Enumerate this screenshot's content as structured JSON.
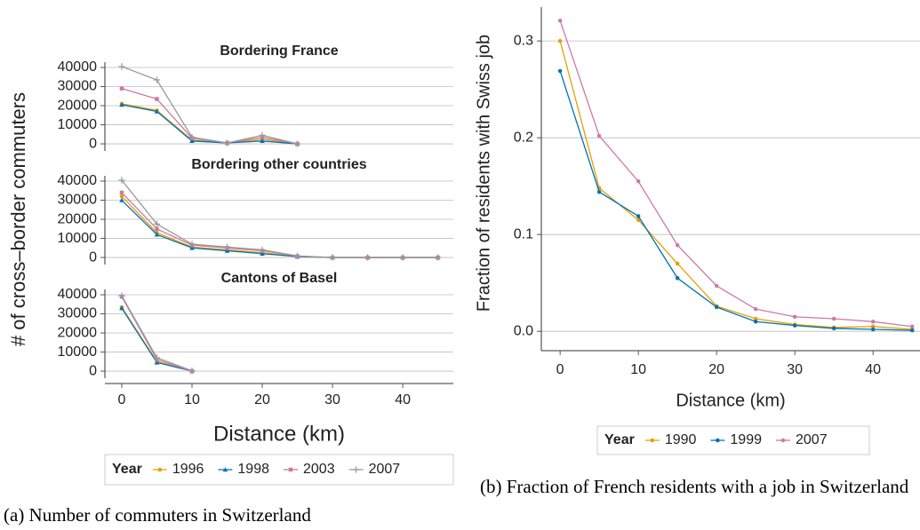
{
  "chart_data": [
    {
      "type": "line",
      "ylabel": "# of cross–border commuters",
      "xlabel": "Distance (km)",
      "x": [
        0,
        5,
        10,
        15,
        20,
        25,
        30,
        35,
        40,
        45
      ],
      "xlim": [
        -2.4,
        47.2
      ],
      "xticks": [
        0,
        10,
        20,
        30,
        40
      ],
      "ylim": [
        -3700,
        42800
      ],
      "yticks": [
        0,
        10000,
        20000,
        30000,
        40000
      ],
      "grid": true,
      "legend": {
        "title": "Year",
        "position": "bottom"
      },
      "series": [
        {
          "name": "1996",
          "color": "#E69F00",
          "marker": "circle"
        },
        {
          "name": "1998",
          "color": "#0072B2",
          "marker": "triangle"
        },
        {
          "name": "2003",
          "color": "#CC79A7",
          "marker": "square"
        },
        {
          "name": "2007",
          "color": "#999999",
          "marker": "plus"
        }
      ],
      "facets": [
        {
          "title": "Bordering France",
          "values": [
            [
              21000,
              17500,
              2000,
              500,
              2500,
              0,
              null,
              null,
              null,
              null
            ],
            [
              20500,
              17000,
              1500,
              500,
              1500,
              0,
              null,
              null,
              null,
              null
            ],
            [
              29000,
              23500,
              3000,
              500,
              3500,
              0,
              null,
              null,
              null,
              null
            ],
            [
              40500,
              33500,
              3500,
              500,
              4500,
              0,
              null,
              null,
              null,
              null
            ]
          ]
        },
        {
          "title": "Bordering other countries",
          "values": [
            [
              32000,
              13000,
              5500,
              4000,
              2500,
              500,
              0,
              0,
              0,
              0
            ],
            [
              30000,
              12000,
              5000,
              3500,
              2000,
              500,
              0,
              0,
              0,
              0
            ],
            [
              34000,
              15000,
              6500,
              5000,
              3500,
              700,
              0,
              0,
              0,
              0
            ],
            [
              40500,
              17500,
              7000,
              5500,
              4000,
              800,
              0,
              0,
              0,
              0
            ]
          ]
        },
        {
          "title": "Cantons of Basel",
          "values": [
            [
              33500,
              5000,
              0,
              null,
              null,
              null,
              null,
              null,
              null,
              null
            ],
            [
              33000,
              4500,
              0,
              null,
              null,
              null,
              null,
              null,
              null,
              null
            ],
            [
              39000,
              6000,
              0,
              null,
              null,
              null,
              null,
              null,
              null,
              null
            ],
            [
              39500,
              7000,
              200,
              null,
              null,
              null,
              null,
              null,
              null,
              null
            ]
          ]
        }
      ]
    },
    {
      "type": "line",
      "ylabel": "Fraction of residents with Swiss job",
      "xlabel": "Distance (km)",
      "x": [
        0,
        5,
        10,
        15,
        20,
        25,
        30,
        35,
        40,
        45
      ],
      "xlim": [
        -2.4,
        46
      ],
      "xticks": [
        0,
        10,
        20,
        30,
        40
      ],
      "ylim": [
        -0.02,
        0.335
      ],
      "yticks": [
        {
          "value": 0,
          "label": "0.0"
        },
        0.1,
        0.2,
        0.3
      ],
      "grid": true,
      "legend": {
        "title": "Year",
        "position": "bottom"
      },
      "series": [
        {
          "name": "1990",
          "color": "#E69F00",
          "marker": "circle",
          "values": [
            0.3,
            0.148,
            0.115,
            0.07,
            0.026,
            0.013,
            0.007,
            0.004,
            0.005,
            0.002
          ]
        },
        {
          "name": "1999",
          "color": "#0072B2",
          "marker": "circle",
          "values": [
            0.269,
            0.144,
            0.119,
            0.055,
            0.025,
            0.01,
            0.006,
            0.003,
            0.002,
            0.001
          ]
        },
        {
          "name": "2007",
          "color": "#CC79A7",
          "marker": "circle",
          "values": [
            0.321,
            0.202,
            0.155,
            0.089,
            0.047,
            0.023,
            0.015,
            0.013,
            0.01,
            0.005
          ]
        }
      ]
    }
  ],
  "captions": [
    "(a) Number of commuters in Switzerland",
    "(b) Fraction of French residents with a job in Switzerland"
  ]
}
